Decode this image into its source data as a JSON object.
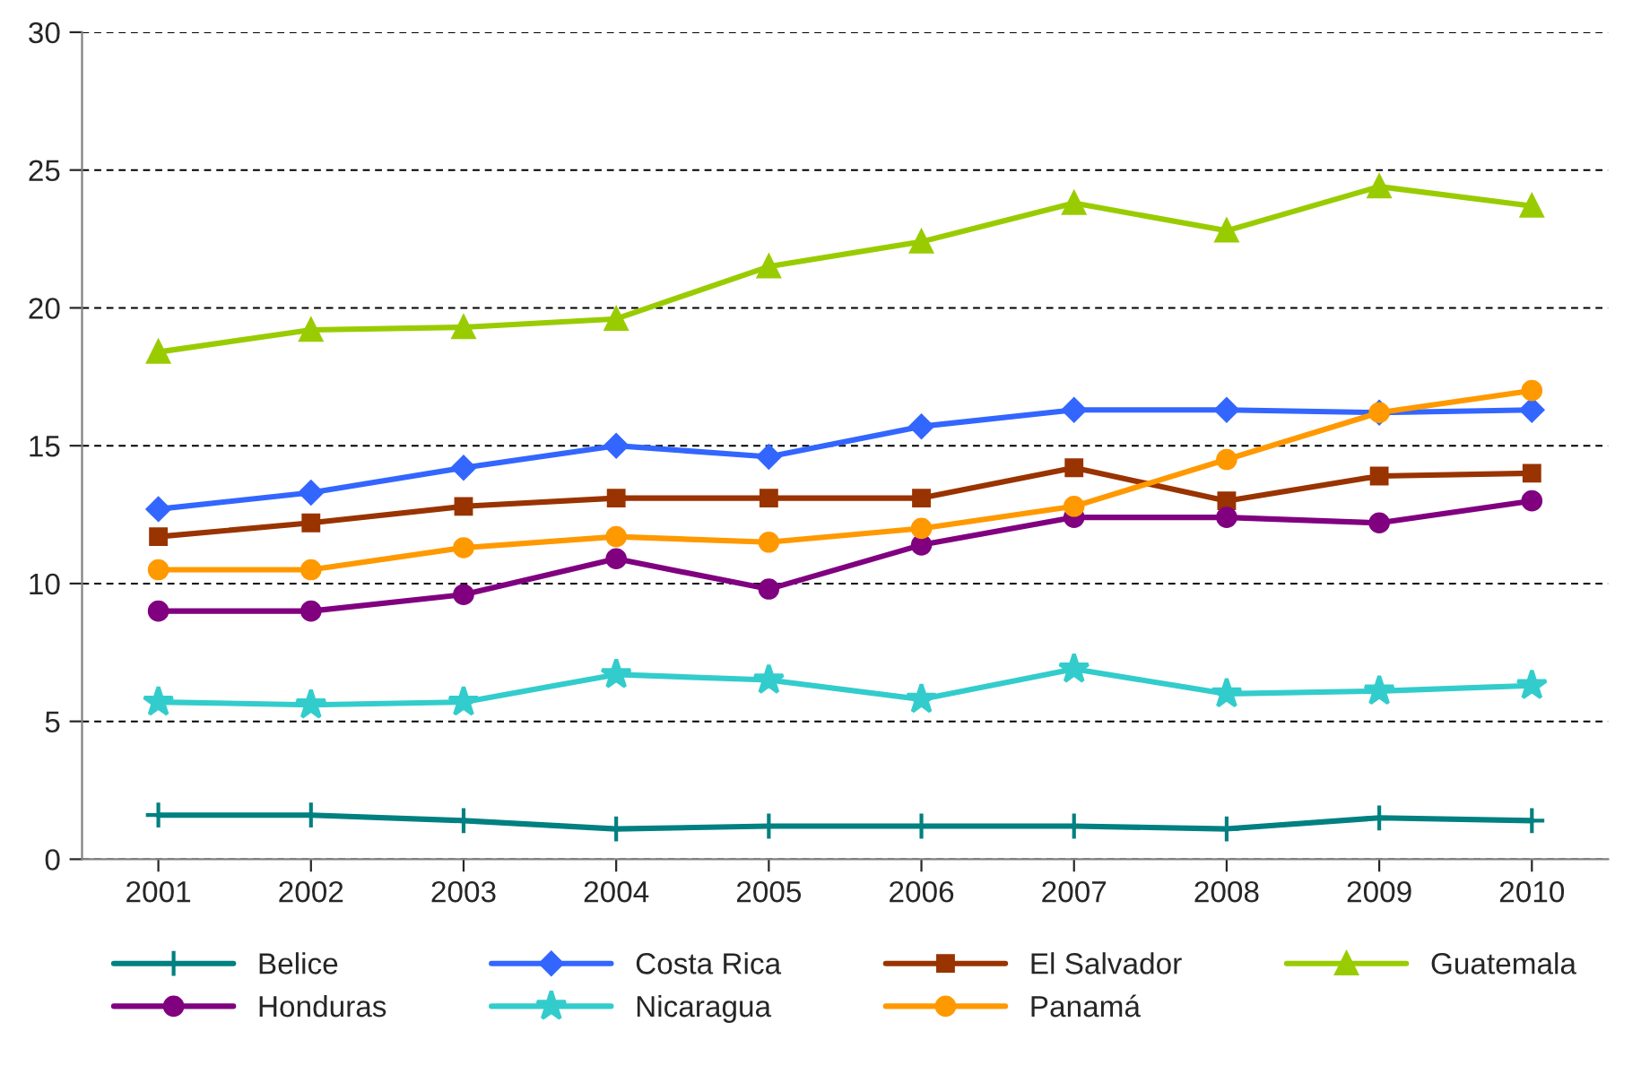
{
  "chart_data": {
    "type": "line",
    "categories": [
      "2001",
      "2002",
      "2003",
      "2004",
      "2005",
      "2006",
      "2007",
      "2008",
      "2009",
      "2010"
    ],
    "ylim": [
      0,
      30
    ],
    "yticks": [
      0,
      5,
      10,
      15,
      20,
      25,
      30
    ],
    "grid": "y",
    "legend": "bottom",
    "series": [
      {
        "name": "Belice",
        "color": "#008080",
        "marker": "cross",
        "values": [
          1.6,
          1.6,
          1.4,
          1.1,
          1.2,
          1.2,
          1.2,
          1.1,
          1.5,
          1.4
        ]
      },
      {
        "name": "Costa Rica",
        "color": "#3366ff",
        "marker": "diamond",
        "values": [
          12.7,
          13.3,
          14.2,
          15.0,
          14.6,
          15.7,
          16.3,
          16.3,
          16.2,
          16.3
        ]
      },
      {
        "name": "El Salvador",
        "color": "#993300",
        "marker": "square",
        "values": [
          11.7,
          12.2,
          12.8,
          13.1,
          13.1,
          13.1,
          14.2,
          13.0,
          13.9,
          14.0
        ]
      },
      {
        "name": "Guatemala",
        "color": "#99cc00",
        "marker": "triangle",
        "values": [
          18.4,
          19.2,
          19.3,
          19.6,
          21.5,
          22.4,
          23.8,
          22.8,
          24.4,
          23.7
        ]
      },
      {
        "name": "Honduras",
        "color": "#800080",
        "marker": "circle",
        "values": [
          9.0,
          9.0,
          9.6,
          10.9,
          9.8,
          11.4,
          12.4,
          12.4,
          12.2,
          13.0
        ]
      },
      {
        "name": "Nicaragua",
        "color": "#33cccc",
        "marker": "star",
        "values": [
          5.7,
          5.6,
          5.7,
          6.7,
          6.5,
          5.8,
          6.9,
          6.0,
          6.1,
          6.3
        ]
      },
      {
        "name": "Panamá",
        "color": "#ff9900",
        "marker": "circle",
        "values": [
          10.5,
          10.5,
          11.3,
          11.7,
          11.5,
          12.0,
          12.8,
          14.5,
          16.2,
          17.0
        ]
      }
    ]
  }
}
